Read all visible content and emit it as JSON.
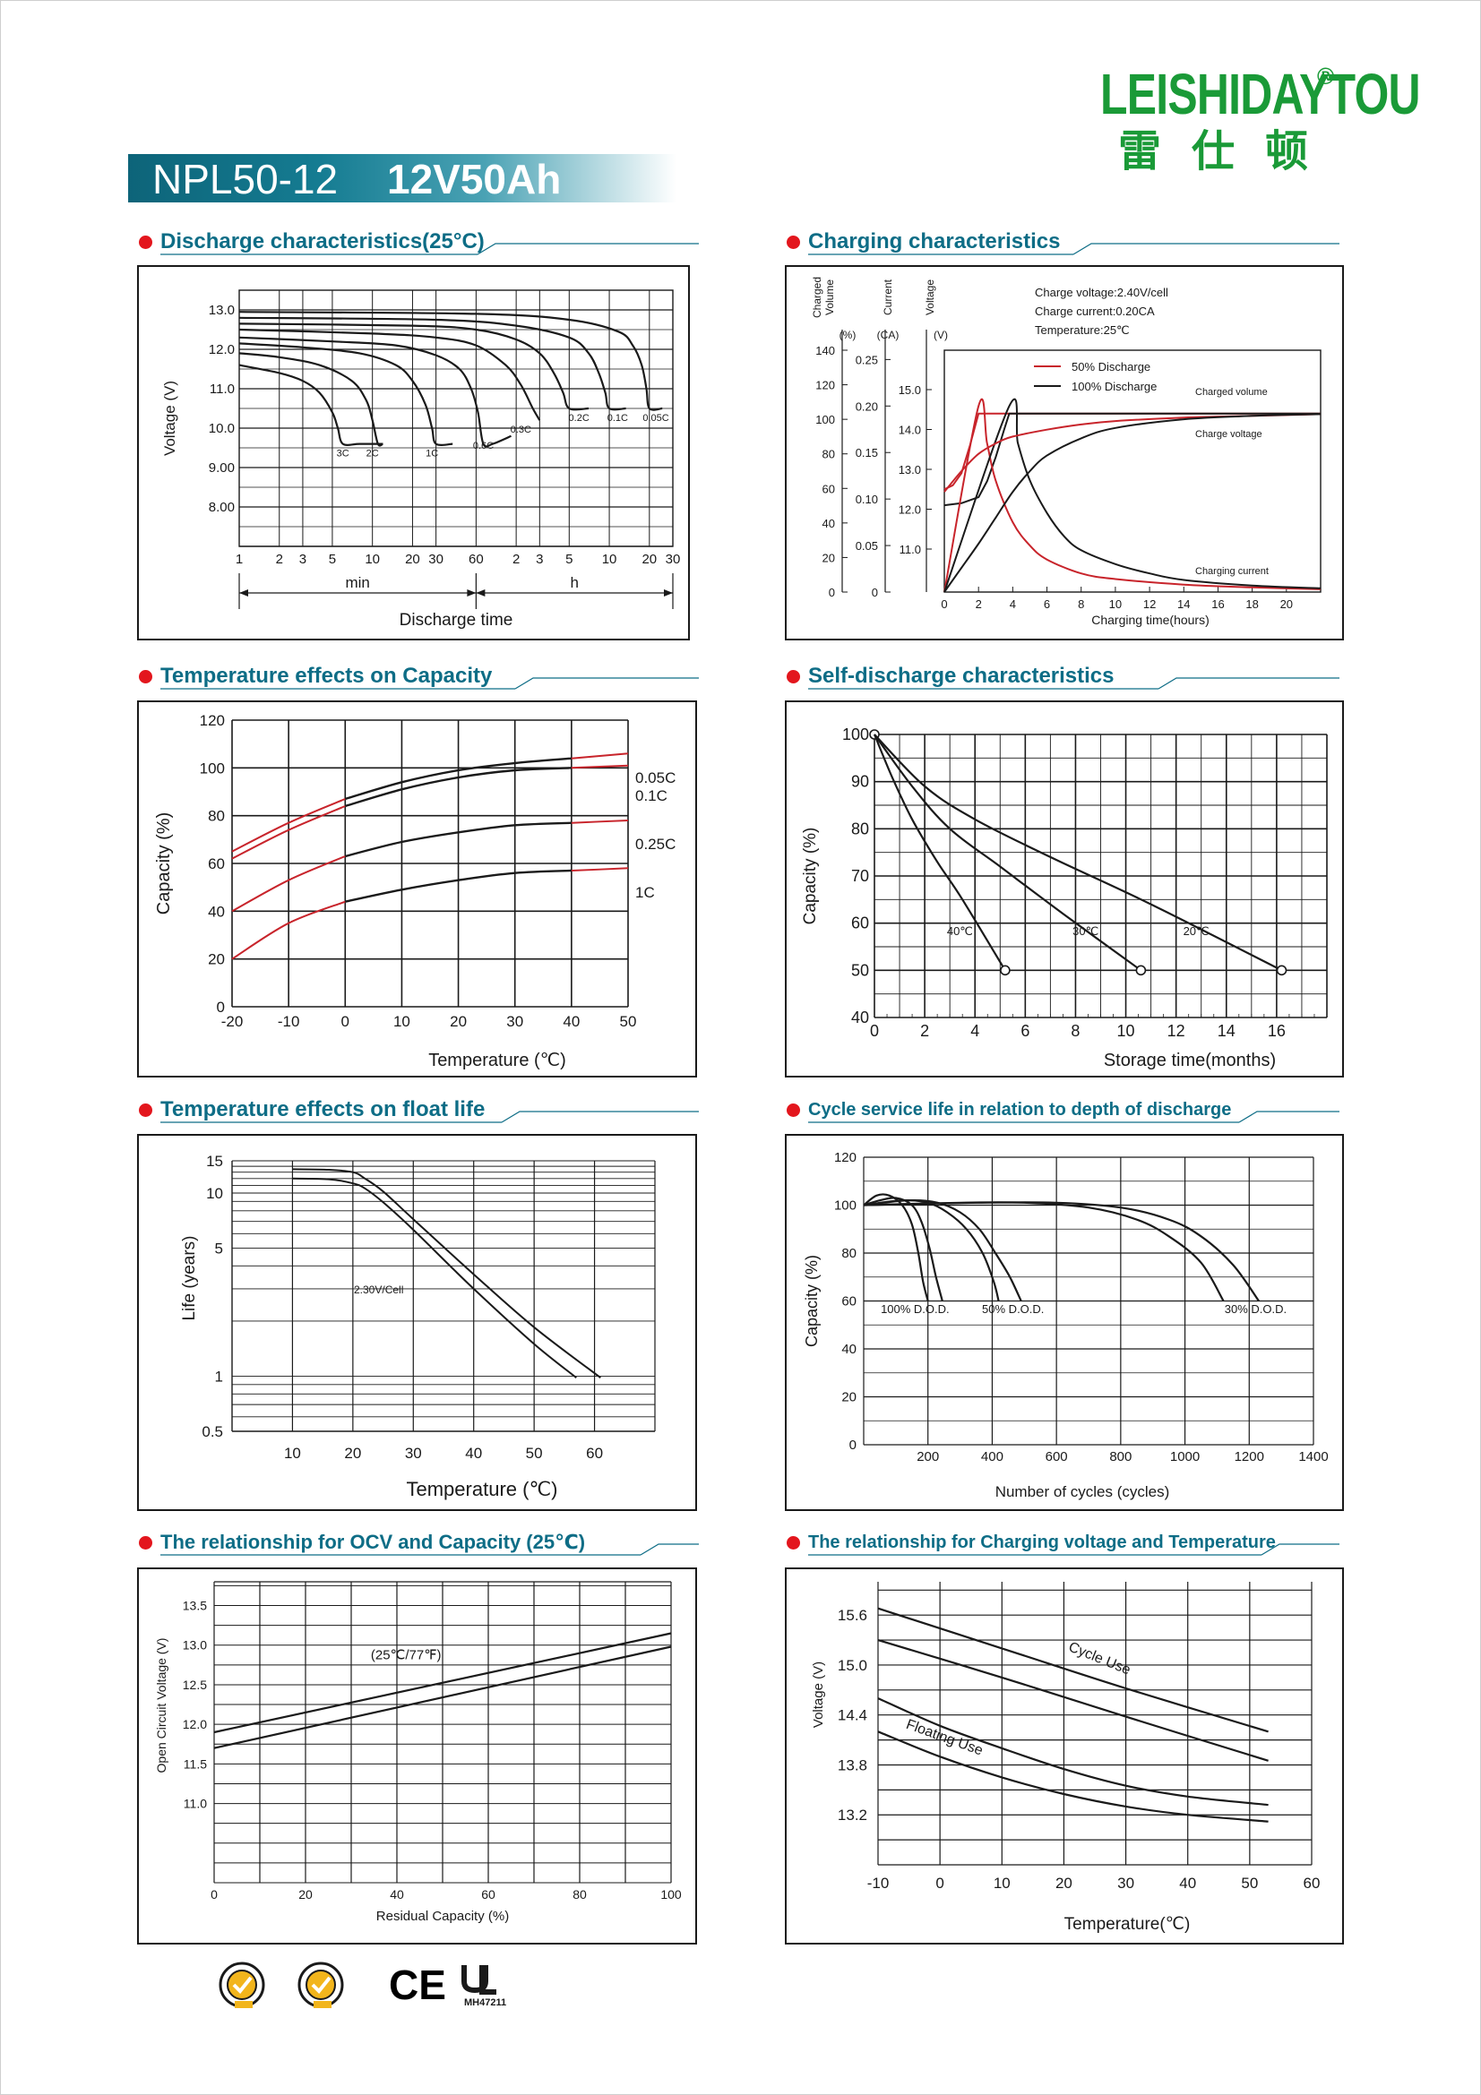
{
  "header": {
    "model": "NPL50-12",
    "rating": "12V50Ah",
    "brand_latin": "LEISHIDAYTOU",
    "brand_registered": "®",
    "brand_cn": "雷仕顿",
    "brand_color": "#1a9a37",
    "title_band_color": "#0d6479"
  },
  "colors": {
    "black_series": "#1a1a1a",
    "red_series": "#c8242b",
    "section_title": "#0e6d86",
    "bullet": "#e3161d"
  },
  "sections": {
    "discharge": "Discharge characteristics(25°C)",
    "charging": "Charging characteristics",
    "temp_capacity": "Temperature effects on Capacity",
    "self_discharge": "Self-discharge characteristics",
    "float_life": "Temperature effects on float life",
    "cycle_life": "Cycle service life in relation to depth of discharge",
    "ocv": "The relationship  for OCV and Capacity (25℃)",
    "charge_voltage_temp": "The relationship for Charging voltage and Temperature"
  },
  "certifications": {
    "icons": [
      "sgs-seal-icon",
      "sgs-seal-icon",
      "ce-mark-icon",
      "ul-mark-icon"
    ],
    "ce": "CE",
    "ul_code": "MH47211"
  },
  "chart_data": [
    {
      "id": "discharge",
      "type": "line",
      "ylabel": "Voltage (V)",
      "xlabel": "Discharge time",
      "x_scale": "log",
      "x_ticks_min": [
        "1",
        "2",
        "3",
        "5",
        "10",
        "20",
        "30",
        "60"
      ],
      "x_ticks_h": [
        "2",
        "3",
        "5",
        "10",
        "20",
        "30"
      ],
      "x_unit_min": "min",
      "x_unit_h": "h",
      "y_ticks": [
        "8.00",
        "9.00",
        "10.0",
        "11.0",
        "12.0",
        "13.0"
      ],
      "ylim": [
        7.0,
        13.5
      ],
      "x_minutes_range": [
        1,
        1800
      ],
      "series": [
        {
          "name": "3C",
          "x_minutes": [
            1,
            2,
            3,
            4,
            5,
            5.5,
            6,
            8,
            12
          ],
          "y": [
            11.6,
            11.4,
            11.2,
            10.9,
            10.4,
            10.0,
            9.6,
            9.6,
            9.6
          ]
        },
        {
          "name": "2C",
          "x_minutes": [
            1,
            2,
            4,
            7,
            9,
            10,
            11,
            12
          ],
          "y": [
            11.9,
            11.8,
            11.6,
            11.2,
            10.7,
            10.2,
            9.6,
            9.6
          ]
        },
        {
          "name": "1C",
          "x_minutes": [
            1,
            3,
            8,
            15,
            20,
            25,
            28,
            30,
            40
          ],
          "y": [
            12.15,
            12.05,
            11.9,
            11.6,
            11.2,
            10.6,
            10.0,
            9.6,
            9.6
          ]
        },
        {
          "name": "0.6C",
          "x_minutes": [
            1,
            5,
            15,
            30,
            45,
            55,
            62,
            68,
            80,
            110
          ],
          "y": [
            12.3,
            12.2,
            12.1,
            11.85,
            11.5,
            11.0,
            10.4,
            9.6,
            9.6,
            9.8
          ]
        },
        {
          "name": "0.3C",
          "x_minutes": [
            1,
            10,
            30,
            60,
            100,
            130,
            160,
            180
          ],
          "y": [
            12.5,
            12.4,
            12.3,
            12.1,
            11.6,
            11.1,
            10.5,
            10.2
          ]
        },
        {
          "name": "0.2C",
          "x_minutes": [
            1,
            20,
            60,
            120,
            180,
            230,
            270,
            300,
            420
          ],
          "y": [
            12.65,
            12.6,
            12.5,
            12.25,
            11.9,
            11.4,
            10.9,
            10.5,
            10.5
          ]
        },
        {
          "name": "0.1C",
          "x_minutes": [
            1,
            30,
            120,
            300,
            420,
            500,
            560,
            600,
            800
          ],
          "y": [
            12.8,
            12.75,
            12.6,
            12.3,
            11.9,
            11.4,
            10.9,
            10.5,
            10.5
          ]
        },
        {
          "name": "0.05C",
          "x_minutes": [
            1,
            60,
            300,
            700,
            900,
            1050,
            1140,
            1200,
            1500
          ],
          "y": [
            12.95,
            12.9,
            12.75,
            12.45,
            12.1,
            11.6,
            11.0,
            10.5,
            10.5
          ]
        }
      ]
    },
    {
      "id": "charging",
      "type": "line",
      "xlabel": "Charging time(hours)",
      "axis_charged_volume": {
        "label": [
          "Charged",
          "Volume"
        ],
        "unit": "(%)",
        "ticks": [
          "0",
          "20",
          "40",
          "60",
          "80",
          "100",
          "120",
          "140"
        ]
      },
      "axis_current": {
        "label": [
          "Current"
        ],
        "unit": "(CA)",
        "ticks": [
          "0",
          "0.05",
          "0.10",
          "0.15",
          "0.20",
          "0.25"
        ]
      },
      "axis_voltage": {
        "label": [
          "Voltage"
        ],
        "unit": "(V)",
        "ticks": [
          "11.0",
          "12.0",
          "13.0",
          "14.0",
          "15.0"
        ]
      },
      "x_ticks": [
        "0",
        "2",
        "4",
        "6",
        "8",
        "10",
        "12",
        "14",
        "16",
        "18",
        "20"
      ],
      "xlim": [
        0,
        22
      ],
      "info": [
        "Charge voltage:2.40V/cell",
        "Charge current:0.20CA",
        "Temperature:25℃"
      ],
      "legend": [
        {
          "name": "50% Discharge",
          "color": "#c8242b"
        },
        {
          "name": "100% Discharge",
          "color": "#1a1a1a"
        }
      ],
      "curve_labels": [
        "Charged volume",
        "Charge voltage",
        "Charging current"
      ],
      "series": [
        {
          "name": "50% Discharge",
          "quantity": "voltage",
          "x": [
            0,
            0.5,
            1,
            1.5,
            2,
            22
          ],
          "y": [
            12.5,
            12.6,
            12.9,
            13.6,
            14.4,
            14.4
          ]
        },
        {
          "name": "100% Discharge",
          "quantity": "voltage",
          "x": [
            0,
            1,
            2,
            2.5,
            3,
            3.5,
            3.8,
            22
          ],
          "y": [
            12.1,
            12.15,
            12.3,
            12.7,
            13.3,
            14.0,
            14.4,
            14.4
          ]
        },
        {
          "name": "50% Discharge",
          "quantity": "current",
          "x": [
            0,
            2,
            2.5,
            3,
            4,
            5,
            6,
            8,
            10,
            14,
            18,
            22
          ],
          "y": [
            0.0,
            0.2,
            0.16,
            0.12,
            0.075,
            0.05,
            0.035,
            0.02,
            0.014,
            0.008,
            0.005,
            0.003
          ]
        },
        {
          "name": "100% Discharge",
          "quantity": "current",
          "x": [
            0,
            3.8,
            4.3,
            5,
            6,
            7,
            8,
            10,
            12,
            14,
            18,
            22
          ],
          "y": [
            0.0,
            0.2,
            0.16,
            0.12,
            0.085,
            0.06,
            0.045,
            0.03,
            0.02,
            0.013,
            0.007,
            0.004
          ]
        },
        {
          "name": "50% Discharge",
          "quantity": "charged_volume",
          "x": [
            0,
            1,
            2,
            3,
            4,
            6,
            8,
            10,
            14,
            18,
            22
          ],
          "y": [
            58,
            70,
            80,
            86,
            90,
            94,
            97,
            99,
            101,
            102,
            103
          ]
        },
        {
          "name": "100% Discharge",
          "quantity": "charged_volume",
          "x": [
            0,
            1,
            2,
            3,
            4,
            5,
            6,
            8,
            10,
            14,
            18,
            22
          ],
          "y": [
            0,
            14,
            28,
            43,
            58,
            70,
            79,
            89,
            95,
            100,
            102,
            103
          ]
        }
      ]
    },
    {
      "id": "temp_capacity",
      "type": "line",
      "ylabel": "Capacity (%)",
      "xlabel": "Temperature (℃)",
      "x_ticks": [
        "-20",
        "-10",
        "0",
        "10",
        "20",
        "30",
        "40",
        "50"
      ],
      "y_ticks": [
        "0",
        "20",
        "40",
        "60",
        "80",
        "100",
        "120"
      ],
      "xlim": [
        -20,
        50
      ],
      "ylim": [
        0,
        120
      ],
      "series": [
        {
          "name": "0.05C",
          "x": [
            -20,
            -10,
            0,
            10,
            20,
            30,
            40,
            50
          ],
          "y": [
            65,
            77,
            87,
            94,
            99,
            102,
            104,
            106
          ]
        },
        {
          "name": "0.1C",
          "x": [
            -20,
            -10,
            0,
            10,
            20,
            30,
            40,
            50
          ],
          "y": [
            62,
            74,
            84,
            91,
            96,
            99,
            100,
            101
          ]
        },
        {
          "name": "0.25C",
          "x": [
            -20,
            -10,
            0,
            10,
            20,
            30,
            40,
            50
          ],
          "y": [
            40,
            53,
            63,
            69,
            73,
            76,
            77,
            78
          ]
        },
        {
          "name": "1C",
          "x": [
            -20,
            -10,
            0,
            10,
            20,
            30,
            40,
            50
          ],
          "y": [
            20,
            35,
            44,
            49,
            53,
            56,
            57,
            58
          ]
        }
      ]
    },
    {
      "id": "self_discharge",
      "type": "line",
      "ylabel": "Capacity (%)",
      "xlabel": "Storage time(months)",
      "x_ticks": [
        "0",
        "2",
        "4",
        "6",
        "8",
        "10",
        "12",
        "14",
        "16"
      ],
      "y_ticks": [
        "40",
        "50",
        "60",
        "70",
        "80",
        "90",
        "100"
      ],
      "xlim": [
        0,
        18
      ],
      "ylim": [
        40,
        100
      ],
      "series": [
        {
          "name": "40℃",
          "x": [
            0,
            0.7,
            1.5,
            2.5,
            3.5,
            5.2
          ],
          "y": [
            100,
            91,
            82,
            73,
            65,
            50
          ]
        },
        {
          "name": "30℃",
          "x": [
            0,
            1.5,
            3,
            5,
            7.5,
            10.6
          ],
          "y": [
            100,
            89,
            80,
            72,
            62,
            50
          ]
        },
        {
          "name": "20℃",
          "x": [
            0,
            2,
            4,
            7,
            11,
            16.2
          ],
          "y": [
            100,
            89,
            82,
            74,
            64,
            50
          ]
        }
      ]
    },
    {
      "id": "float_life",
      "type": "line",
      "ylabel": "Life (years)",
      "xlabel": "Temperature (℃)",
      "y_scale": "log",
      "x_ticks": [
        "10",
        "20",
        "30",
        "40",
        "50",
        "60"
      ],
      "y_ticks": [
        "0.5",
        "1",
        "5",
        "10",
        "15"
      ],
      "xlim": [
        0,
        70
      ],
      "ylim": [
        0.5,
        15
      ],
      "annotation": "2.30V/Cell",
      "series": [
        {
          "name": "upper",
          "x": [
            10,
            16,
            20,
            22,
            25,
            30,
            40,
            50,
            61
          ],
          "y": [
            13.5,
            13.4,
            13.0,
            12.0,
            10.2,
            7.2,
            3.6,
            1.85,
            0.98
          ]
        },
        {
          "name": "lower",
          "x": [
            10,
            16,
            20,
            22,
            25,
            30,
            40,
            50,
            57
          ],
          "y": [
            12.0,
            11.9,
            11.3,
            10.6,
            8.9,
            6.3,
            3.0,
            1.5,
            0.98
          ]
        }
      ]
    },
    {
      "id": "cycle_life",
      "type": "line",
      "ylabel": "Capacity (%)",
      "xlabel": "Number of cycles (cycles)",
      "x_ticks": [
        "200",
        "400",
        "600",
        "800",
        "1000",
        "1200",
        "1400"
      ],
      "y_ticks": [
        "0",
        "20",
        "40",
        "60",
        "80",
        "100",
        "120"
      ],
      "xlim": [
        0,
        1400
      ],
      "ylim": [
        0,
        120
      ],
      "labels": [
        "100% D.O.D.",
        "50% D.O.D.",
        "30% D.O.D."
      ],
      "series": [
        {
          "name": "100% D.O.D. a",
          "x": [
            0,
            40,
            80,
            120,
            150,
            170,
            185,
            200
          ],
          "y": [
            100,
            104,
            104,
            100,
            92,
            80,
            68,
            60
          ]
        },
        {
          "name": "100% D.O.D. b",
          "x": [
            0,
            50,
            100,
            150,
            180,
            205,
            225,
            245
          ],
          "y": [
            100,
            102,
            103,
            100,
            93,
            82,
            70,
            60
          ]
        },
        {
          "name": "50% D.O.D. a",
          "x": [
            0,
            120,
            200,
            260,
            320,
            370,
            405,
            420
          ],
          "y": [
            100,
            102,
            101,
            97,
            90,
            80,
            68,
            60
          ]
        },
        {
          "name": "50% D.O.D. b",
          "x": [
            0,
            140,
            230,
            300,
            360,
            410,
            455,
            490
          ],
          "y": [
            100,
            102,
            101,
            97,
            90,
            80,
            70,
            60
          ]
        },
        {
          "name": "30% D.O.D. a",
          "x": [
            0,
            300,
            500,
            700,
            850,
            950,
            1050,
            1120
          ],
          "y": [
            100,
            101,
            101,
            99,
            94,
            87,
            76,
            60
          ]
        },
        {
          "name": "30% D.O.D. b",
          "x": [
            0,
            350,
            600,
            800,
            950,
            1050,
            1150,
            1230
          ],
          "y": [
            100,
            101,
            101,
            99,
            94,
            87,
            75,
            60
          ]
        }
      ]
    },
    {
      "id": "ocv",
      "type": "line",
      "ylabel": "Open Circuit Voltage (V)",
      "xlabel": "Residual Capacity (%)",
      "x_ticks": [
        "0",
        "20",
        "40",
        "60",
        "80",
        "100"
      ],
      "y_ticks": [
        "11.0",
        "11.5",
        "12.0",
        "12.5",
        "13.0",
        "13.5"
      ],
      "xlim": [
        0,
        100
      ],
      "ylim": [
        10.0,
        13.8
      ],
      "annotation": "(25℃/77℉)",
      "series": [
        {
          "name": "upper",
          "x": [
            0,
            100
          ],
          "y": [
            11.9,
            13.15
          ]
        },
        {
          "name": "lower",
          "x": [
            0,
            100
          ],
          "y": [
            11.7,
            12.98
          ]
        }
      ]
    },
    {
      "id": "charge_voltage_temp",
      "type": "line",
      "ylabel": "Voltage (V)",
      "xlabel": "Temperature(℃)",
      "x_ticks": [
        "-10",
        "0",
        "10",
        "20",
        "30",
        "40",
        "50",
        "60"
      ],
      "y_ticks": [
        "13.2",
        "13.8",
        "14.4",
        "15.0",
        "15.6"
      ],
      "xlim": [
        -10,
        60
      ],
      "ylim": [
        12.6,
        16.0
      ],
      "labels": [
        "Cycle Use",
        "Floating Use"
      ],
      "series": [
        {
          "name": "Cycle Use upper",
          "x": [
            -10,
            10,
            30,
            53
          ],
          "y": [
            15.68,
            15.2,
            14.72,
            14.2
          ]
        },
        {
          "name": "Cycle Use lower",
          "x": [
            -10,
            10,
            30,
            53
          ],
          "y": [
            15.3,
            14.85,
            14.38,
            13.85
          ]
        },
        {
          "name": "Floating Use upper",
          "x": [
            -10,
            0,
            10,
            20,
            30,
            40,
            53
          ],
          "y": [
            14.6,
            14.27,
            14.0,
            13.75,
            13.55,
            13.42,
            13.32
          ]
        },
        {
          "name": "Floating Use lower",
          "x": [
            -10,
            0,
            10,
            20,
            30,
            40,
            53
          ],
          "y": [
            14.2,
            13.9,
            13.65,
            13.45,
            13.3,
            13.2,
            13.12
          ]
        }
      ]
    }
  ]
}
